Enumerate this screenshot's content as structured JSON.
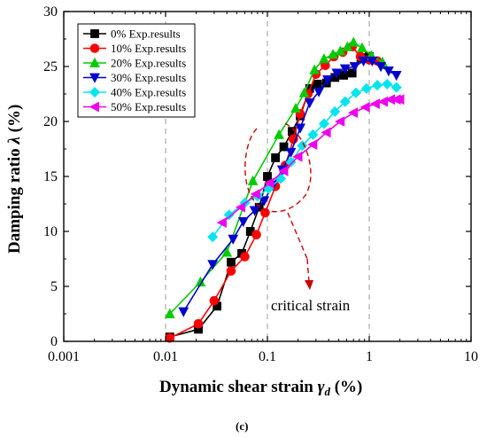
{
  "chart_data": {
    "type": "line",
    "x_scale": "log",
    "xlim": [
      0.001,
      10
    ],
    "ylim": [
      0,
      30
    ],
    "xlabel": "Dynamic shear strain",
    "xlabel_symbol": "γ",
    "xlabel_subscript": "d",
    "xlabel_unit": "(%)",
    "ylabel": "Damping ratio",
    "ylabel_symbol": "λ",
    "ylabel_unit": "(%)",
    "x_ticks": [
      {
        "value": 0.001,
        "label": "0.001"
      },
      {
        "value": 0.01,
        "label": "0.01"
      },
      {
        "value": 0.1,
        "label": "0.1"
      },
      {
        "value": 1,
        "label": "1"
      },
      {
        "value": 10,
        "label": "10"
      }
    ],
    "y_ticks": [
      {
        "value": 0,
        "label": "0"
      },
      {
        "value": 5,
        "label": "5"
      },
      {
        "value": 10,
        "label": "10"
      },
      {
        "value": 15,
        "label": "15"
      },
      {
        "value": 20,
        "label": "20"
      },
      {
        "value": 25,
        "label": "25"
      },
      {
        "value": 30,
        "label": "30"
      }
    ],
    "grid": "vertical dashed at decades",
    "legend_position": "top-left",
    "series": [
      {
        "name": "0% Exp.results",
        "color": "#000000",
        "marker": "square",
        "x": [
          0.011,
          0.021,
          0.032,
          0.044,
          0.056,
          0.068,
          0.083,
          0.1,
          0.12,
          0.145,
          0.175,
          0.21,
          0.26,
          0.31,
          0.38,
          0.46,
          0.56,
          0.68,
          0.83,
          1.0
        ],
        "y": [
          0.4,
          1.1,
          3.2,
          7.2,
          8.0,
          10.0,
          12.2,
          15.0,
          16.7,
          17.7,
          19.1,
          20.5,
          23.0,
          23.4,
          23.5,
          24.0,
          24.2,
          24.4,
          25.8,
          25.9
        ]
      },
      {
        "name": "10% Exp.results",
        "color": "#ff0000",
        "marker": "circle",
        "x": [
          0.011,
          0.021,
          0.03,
          0.044,
          0.06,
          0.078,
          0.095,
          0.12,
          0.15,
          0.18,
          0.21,
          0.25,
          0.3,
          0.37,
          0.45,
          0.55,
          0.68,
          0.82,
          1.0,
          1.2
        ],
        "y": [
          0.3,
          1.6,
          3.7,
          6.4,
          7.7,
          9.7,
          11.7,
          14.1,
          16.0,
          18.4,
          20.7,
          22.5,
          24.3,
          25.1,
          25.9,
          26.3,
          26.8,
          25.9,
          25.6,
          25.5
        ]
      },
      {
        "name": "20% Exp.results",
        "color": "#00cc00",
        "marker": "triangle-up",
        "x": [
          0.011,
          0.022,
          0.04,
          0.072,
          0.13,
          0.19,
          0.23,
          0.29,
          0.36,
          0.44,
          0.52,
          0.61,
          0.7,
          0.85,
          1.05,
          1.35
        ],
        "y": [
          2.5,
          5.4,
          8.1,
          14.6,
          18.8,
          21.2,
          22.6,
          24.7,
          25.7,
          26.1,
          26.4,
          26.8,
          27.2,
          26.7,
          26.0,
          25.4
        ]
      },
      {
        "name": "30% Exp.results",
        "color": "#0000cc",
        "marker": "triangle-down",
        "x": [
          0.015,
          0.029,
          0.046,
          0.058,
          0.075,
          0.093,
          0.113,
          0.14,
          0.17,
          0.21,
          0.26,
          0.32,
          0.39,
          0.48,
          0.58,
          0.72,
          0.88,
          1.07,
          1.3,
          1.55,
          1.85
        ],
        "y": [
          2.7,
          7.0,
          9.3,
          10.9,
          11.9,
          12.8,
          14.2,
          15.6,
          17.2,
          19.4,
          21.7,
          22.7,
          23.8,
          24.4,
          24.8,
          25.0,
          25.5,
          25.5,
          25.0,
          24.6,
          24.2
        ]
      },
      {
        "name": "40% Exp.results",
        "color": "#00e5ee",
        "marker": "diamond",
        "x": [
          0.029,
          0.042,
          0.06,
          0.08,
          0.103,
          0.135,
          0.17,
          0.22,
          0.28,
          0.36,
          0.46,
          0.58,
          0.74,
          0.94,
          1.2,
          1.5,
          1.85
        ],
        "y": [
          9.5,
          11.5,
          12.6,
          13.2,
          13.9,
          14.8,
          16.3,
          17.8,
          18.8,
          19.8,
          20.9,
          21.8,
          22.6,
          23.0,
          23.3,
          23.4,
          23.1
        ]
      },
      {
        "name": "50% Exp.results",
        "color": "#ee00ee",
        "marker": "triangle-left",
        "x": [
          0.036,
          0.055,
          0.077,
          0.105,
          0.145,
          0.2,
          0.28,
          0.38,
          0.52,
          0.7,
          0.92,
          1.15,
          1.38,
          1.62,
          1.85,
          2.0
        ],
        "y": [
          10.8,
          12.2,
          13.4,
          14.4,
          15.5,
          16.8,
          17.9,
          19.0,
          20.0,
          20.8,
          21.3,
          21.6,
          21.8,
          22.0,
          22.0,
          22.0
        ]
      }
    ],
    "annotation": "critical strain"
  },
  "caption": "(c)"
}
